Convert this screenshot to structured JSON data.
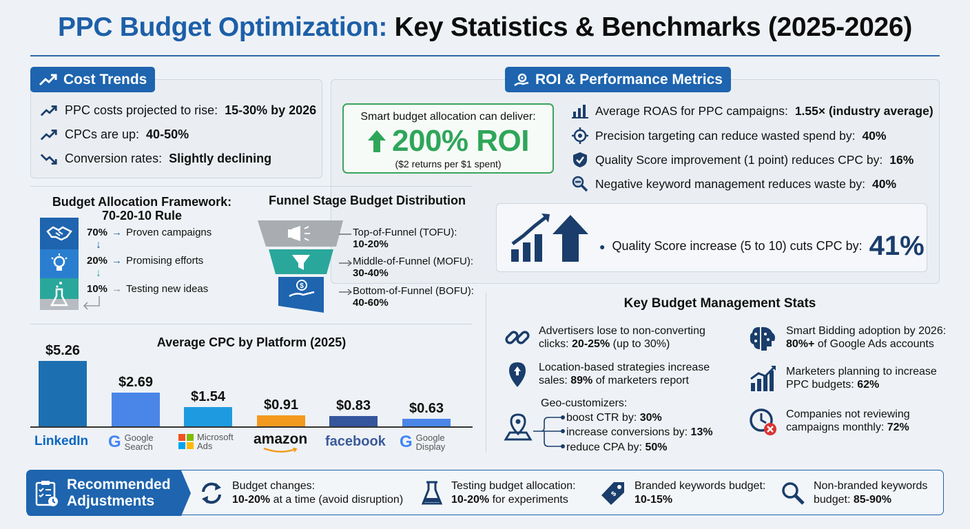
{
  "title": {
    "part1": "PPC Budget Optimization:",
    "part2": "Key Statistics & Benchmarks (2025-2026)"
  },
  "cost_trends": {
    "heading": "Cost Trends",
    "icon": "trend-up-icon",
    "items": [
      {
        "label": "PPC costs projected to rise:",
        "value": "15-30% by 2026",
        "icon": "trend-up-icon"
      },
      {
        "label": "CPCs are up:",
        "value": "40-50%",
        "icon": "trend-up-icon"
      },
      {
        "label": "Conversion rates:",
        "value": "Slightly declining",
        "icon": "trend-down-icon"
      }
    ]
  },
  "roi": {
    "heading": "ROI & Performance Metrics",
    "callout": {
      "lead": "Smart budget allocation can deliver:",
      "value": "200% ROI",
      "note": "($2 returns per $1 spent)"
    },
    "items": [
      {
        "label": "Average ROAS for PPC campaigns:",
        "value": "1.55× (industry average)",
        "icon": "bar-chart-icon"
      },
      {
        "label": "Precision targeting can reduce wasted spend by:",
        "value": "40%",
        "icon": "target-icon"
      },
      {
        "label": "Quality Score improvement (1 point) reduces CPC by:",
        "value": "16%",
        "icon": "shield-check-icon"
      },
      {
        "label": "Negative keyword management reduces waste by:",
        "value": "40%",
        "icon": "search-minus-icon"
      }
    ],
    "quality_score": {
      "label": "Quality Score increase (5 to 10) cuts CPC by:",
      "value": "41%"
    }
  },
  "allocation": {
    "title": "Budget Allocation Framework:",
    "subtitle": "70-20-10 Rule",
    "tiers": [
      {
        "pct": "70%",
        "label": "Proven campaigns",
        "icon": "handshake-icon",
        "color": "#1e64ae"
      },
      {
        "pct": "20%",
        "label": "Promising efforts",
        "icon": "lightbulb-icon",
        "color": "#2a7ed0"
      },
      {
        "pct": "10%",
        "label": "Testing new ideas",
        "icon": "flask-icon",
        "color": "#2aa79b"
      }
    ]
  },
  "funnel": {
    "title": "Funnel Stage Budget Distribution",
    "stages": [
      {
        "name": "Top-of-Funnel (TOFU):",
        "value": "10-20%",
        "icon": "megaphone-icon",
        "color": "#a9adb2"
      },
      {
        "name": "Middle-of-Funnel (MOFU):",
        "value": "30-40%",
        "icon": "filter-icon",
        "color": "#2aa79b"
      },
      {
        "name": "Bottom-of-Funnel (BOFU):",
        "value": "40-60%",
        "icon": "money-hand-icon",
        "color": "#1e64ae"
      }
    ]
  },
  "chart_data": {
    "type": "bar",
    "title": "Average CPC by Platform (2025)",
    "categories": [
      "LinkedIn",
      "Google Search",
      "Microsoft Ads",
      "amazon",
      "facebook",
      "Google Display"
    ],
    "values": [
      5.26,
      2.69,
      1.54,
      0.91,
      0.83,
      0.63
    ],
    "labels": [
      "$5.26",
      "$2.69",
      "$1.54",
      "$0.91",
      "$0.83",
      "$0.63"
    ],
    "colors": [
      "#1c6fb0",
      "#4a86e8",
      "#1e9be0",
      "#f39a1e",
      "#35559c",
      "#4a86e8"
    ],
    "ylim": [
      0,
      5.26
    ],
    "grid": false,
    "legend": "none"
  },
  "platform_logos": [
    {
      "text": "LinkedIn"
    },
    {
      "text1": "Google",
      "text2": "Search"
    },
    {
      "text1": "Microsoft",
      "text2": "Ads"
    },
    {
      "text": "amazon"
    },
    {
      "text": "facebook"
    },
    {
      "text1": "Google",
      "text2": "Display"
    }
  ],
  "key_stats": {
    "title": "Key Budget Management Stats",
    "left": [
      {
        "line1": "Advertisers lose to non-converting",
        "line2a": "clicks:",
        "line2b": "20-25%",
        "line2c": "(up to 30%)",
        "icon": "broken-link-icon"
      },
      {
        "line1": "Location-based strategies increase",
        "line2a": "sales:",
        "line2b": "89%",
        "line2c": "of marketers report",
        "icon": "location-pin-icon"
      }
    ],
    "geo": {
      "heading": "Geo-customizers:",
      "icon": "map-pin-icon",
      "items": [
        {
          "label": "boost CTR by:",
          "value": "30%"
        },
        {
          "label": "increase conversions by:",
          "value": "13%"
        },
        {
          "label": "reduce CPA by:",
          "value": "50%"
        }
      ]
    },
    "right": [
      {
        "line1": "Smart Bidding adoption by 2026:",
        "line2b": "80%+",
        "line2c": "of Google Ads accounts",
        "icon": "brain-icon"
      },
      {
        "line1": "Marketers planning to increase",
        "line2a": "PPC budgets:",
        "line2b": "62%",
        "icon": "growth-chart-icon"
      },
      {
        "line1": "Companies not reviewing",
        "line2a": "campaigns monthly:",
        "line2b": "72%",
        "icon": "clock-x-icon"
      }
    ]
  },
  "recommended": {
    "heading1": "Recommended",
    "heading2": "Adjustments",
    "icon": "checklist-icon",
    "items": [
      {
        "line1": "Budget changes:",
        "line2b": "10-20%",
        "line2c": "at a time (avoid disruption)",
        "icon": "refresh-icon"
      },
      {
        "line1": "Testing budget allocation:",
        "line2b": "10-20%",
        "line2c": "for experiments",
        "icon": "flask-icon"
      },
      {
        "line1": "Branded keywords budget:",
        "line2b": "10-15%",
        "line2c": "",
        "icon": "tag-icon"
      },
      {
        "line1": "Non-branded keywords",
        "line2a": "budget:",
        "line2b": "85-90%",
        "icon": "search-icon"
      }
    ]
  }
}
